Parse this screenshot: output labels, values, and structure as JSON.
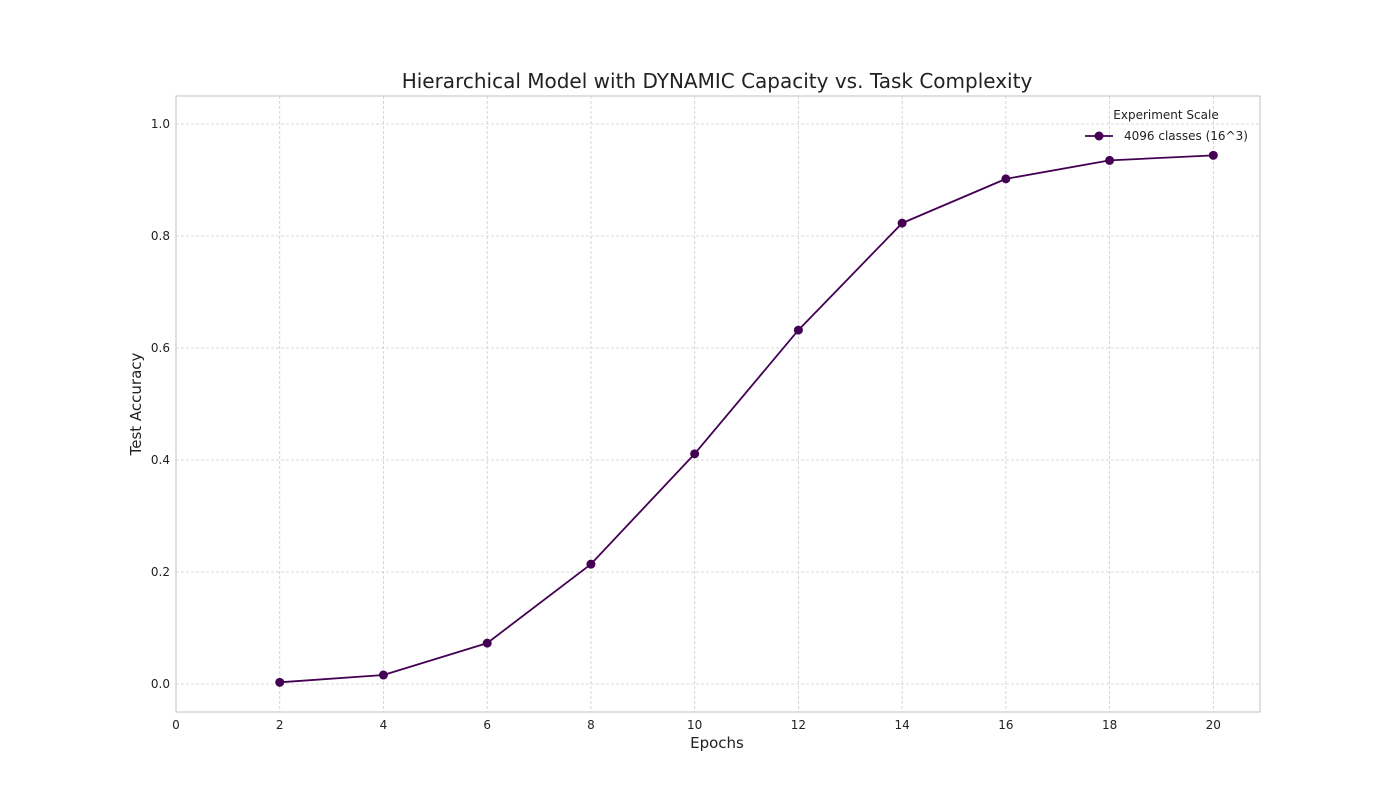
{
  "chart_data": {
    "type": "line",
    "title": "Hierarchical Model with DYNAMIC Capacity vs. Task Complexity",
    "xlabel": "Epochs",
    "ylabel": "Test Accuracy",
    "xlim": [
      0,
      20.9
    ],
    "ylim": [
      -0.05,
      1.05
    ],
    "xticks": [
      0,
      2,
      4,
      6,
      8,
      10,
      12,
      14,
      16,
      18,
      20
    ],
    "yticks": [
      0.0,
      0.2,
      0.4,
      0.6,
      0.8,
      1.0
    ],
    "xtick_labels": [
      "0",
      "2",
      "4",
      "6",
      "8",
      "10",
      "12",
      "14",
      "16",
      "18",
      "20"
    ],
    "ytick_labels": [
      "0.0",
      "0.2",
      "0.4",
      "0.6",
      "0.8",
      "1.0"
    ],
    "grid": true,
    "legend": {
      "title": "Experiment Scale",
      "placement": "top-right"
    },
    "series": [
      {
        "name": "4096 classes (16^3)",
        "color": "#440154",
        "marker": "circle",
        "x": [
          2,
          4,
          6,
          8,
          10,
          12,
          14,
          16,
          18,
          20
        ],
        "y": [
          0.003,
          0.016,
          0.073,
          0.214,
          0.411,
          0.632,
          0.823,
          0.902,
          0.935,
          0.944
        ]
      }
    ]
  }
}
